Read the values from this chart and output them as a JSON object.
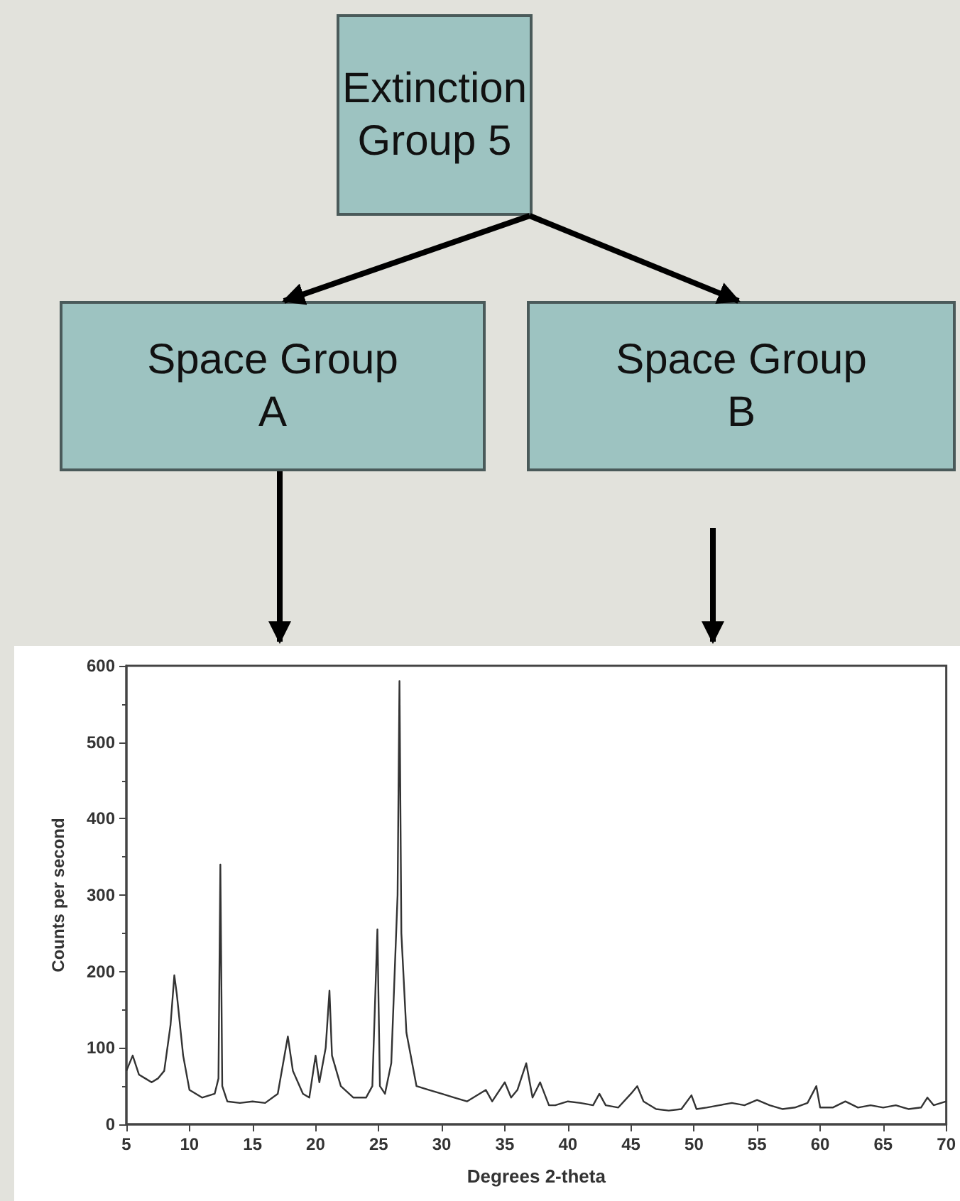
{
  "chart_data": {
    "type": "line",
    "xlabel": "Degrees 2-theta",
    "ylabel": "Counts per second",
    "annotations": [
      "Extinction Group 5",
      "Space Group A",
      "Space Group B"
    ],
    "x": [
      5,
      5.5,
      6,
      6.5,
      7,
      7.5,
      8,
      8.5,
      8.8,
      9,
      9.5,
      10,
      11,
      12,
      12.3,
      12.45,
      12.6,
      13,
      14,
      15,
      16,
      17,
      17.8,
      18.2,
      19,
      19.5,
      20,
      20.3,
      20.8,
      21.1,
      21.3,
      22,
      23,
      24,
      24.5,
      24.9,
      25.1,
      25.5,
      26,
      26.5,
      26.65,
      26.8,
      27.2,
      28,
      29,
      30,
      31,
      32,
      33.5,
      34,
      35,
      35.5,
      36,
      36.7,
      37.2,
      37.8,
      38.5,
      39,
      40,
      41,
      42,
      42.5,
      43,
      44,
      45,
      45.5,
      46,
      47,
      48,
      49,
      49.8,
      50.2,
      51,
      52,
      53,
      54,
      55,
      56,
      57,
      58,
      59,
      59.7,
      60,
      61,
      62,
      63,
      64,
      65,
      66,
      67,
      68,
      68.5,
      69,
      70
    ],
    "series": [
      {
        "color": "#333333",
        "values": [
          70,
          90,
          65,
          60,
          55,
          60,
          70,
          130,
          195,
          170,
          90,
          45,
          35,
          40,
          60,
          340,
          50,
          30,
          28,
          30,
          28,
          40,
          115,
          70,
          40,
          35,
          90,
          55,
          100,
          175,
          90,
          50,
          35,
          35,
          50,
          255,
          50,
          40,
          80,
          300,
          580,
          250,
          120,
          50,
          45,
          40,
          35,
          30,
          45,
          30,
          55,
          35,
          45,
          80,
          35,
          55,
          25,
          25,
          30,
          28,
          25,
          40,
          25,
          22,
          40,
          50,
          30,
          20,
          18,
          20,
          38,
          20,
          22,
          25,
          28,
          25,
          32,
          25,
          20,
          22,
          28,
          50,
          22,
          22,
          30,
          22,
          25,
          22,
          25,
          20,
          22,
          35,
          25,
          30
        ]
      }
    ],
    "xlim": [
      5,
      70
    ],
    "xticks": [
      5,
      10,
      15,
      20,
      25,
      30,
      35,
      40,
      45,
      50,
      55,
      60,
      65,
      70
    ],
    "ylim": [
      0,
      600
    ],
    "yticks": [
      0,
      100,
      200,
      300,
      400,
      500,
      600
    ],
    "grid": false,
    "marker": "none",
    "line_style": "solid"
  }
}
